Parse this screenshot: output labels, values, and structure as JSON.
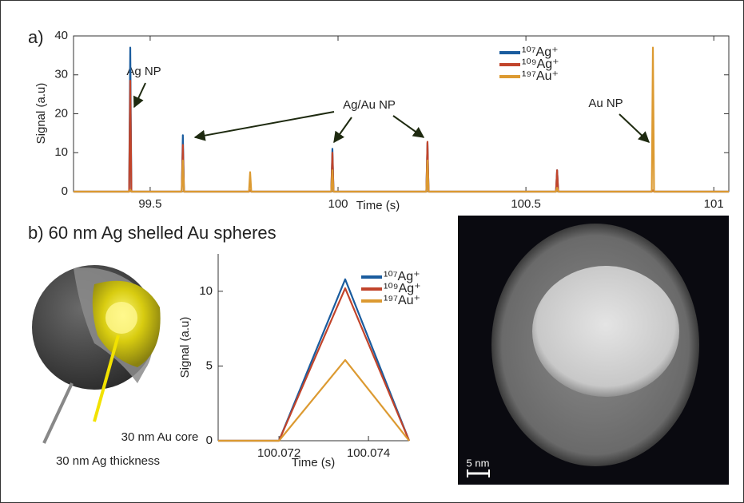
{
  "panel_a_label": "a)",
  "panel_b_label": "b) 60 nm Ag shelled Au spheres",
  "diagram_labels": [
    "30 nm Au core",
    "30 nm Ag thickness"
  ],
  "scale_bar": "5 nm",
  "chart_data": [
    {
      "type": "line",
      "xlabel": "Time (s)",
      "ylabel": "Signal (a.u)",
      "annotations": [
        "Ag NP",
        "Ag/Au NP",
        "Au NP"
      ],
      "x": [
        99.296,
        99.444,
        99.447,
        99.45,
        99.584,
        99.587,
        99.59,
        99.763,
        99.766,
        99.769,
        99.982,
        99.985,
        99.988,
        100.235,
        100.238,
        100.241,
        100.58,
        100.583,
        100.586,
        100.835,
        100.838,
        100.841,
        101.04
      ],
      "xlim": [
        99.296,
        101.04
      ],
      "xticks": [
        99.5,
        100,
        100.5,
        101
      ],
      "ylim": [
        0,
        40
      ],
      "yticks": [
        0,
        10,
        20,
        30,
        40
      ],
      "series": [
        {
          "name": "¹⁰⁷Ag⁺",
          "color": "#1a5c9e",
          "values": [
            0,
            0,
            37,
            0,
            0,
            14.5,
            0,
            0,
            0.3,
            0,
            0,
            11,
            0,
            0,
            12.5,
            0,
            0,
            5.5,
            0,
            0,
            0.3,
            0,
            0
          ]
        },
        {
          "name": "¹⁰⁹Ag⁺",
          "color": "#c1442b",
          "values": [
            0,
            0,
            28.5,
            0,
            0,
            12,
            0,
            0,
            0.3,
            0,
            0,
            10,
            0,
            0,
            12.8,
            0,
            0,
            5.5,
            0,
            0,
            0.3,
            0,
            0
          ]
        },
        {
          "name": "¹⁹⁷Au⁺",
          "color": "#dc9a31",
          "values": [
            0,
            0,
            0.5,
            0,
            0,
            8,
            0,
            0,
            5,
            0,
            0,
            5.5,
            0,
            0,
            8,
            0,
            0,
            1,
            0,
            0,
            37,
            0,
            0
          ]
        }
      ]
    },
    {
      "type": "line",
      "xlabel": "Time (s)",
      "ylabel": "Signal (a.u)",
      "x": [
        100.07064,
        100.072,
        100.07348,
        100.07491
      ],
      "xlim": [
        100.07064,
        100.07491
      ],
      "xticks": [
        100.072,
        100.074
      ],
      "ylim": [
        0,
        12.5
      ],
      "yticks": [
        0,
        5,
        10
      ],
      "series": [
        {
          "name": "¹⁰⁷Ag⁺",
          "color": "#1a5c9e",
          "values": [
            0,
            0,
            10.8,
            0
          ]
        },
        {
          "name": "¹⁰⁹Ag⁺",
          "color": "#c1442b",
          "values": [
            0,
            0,
            10.2,
            0
          ]
        },
        {
          "name": "¹⁹⁷Au⁺",
          "color": "#dc9a31",
          "values": [
            0,
            0,
            5.4,
            0
          ]
        }
      ]
    }
  ]
}
